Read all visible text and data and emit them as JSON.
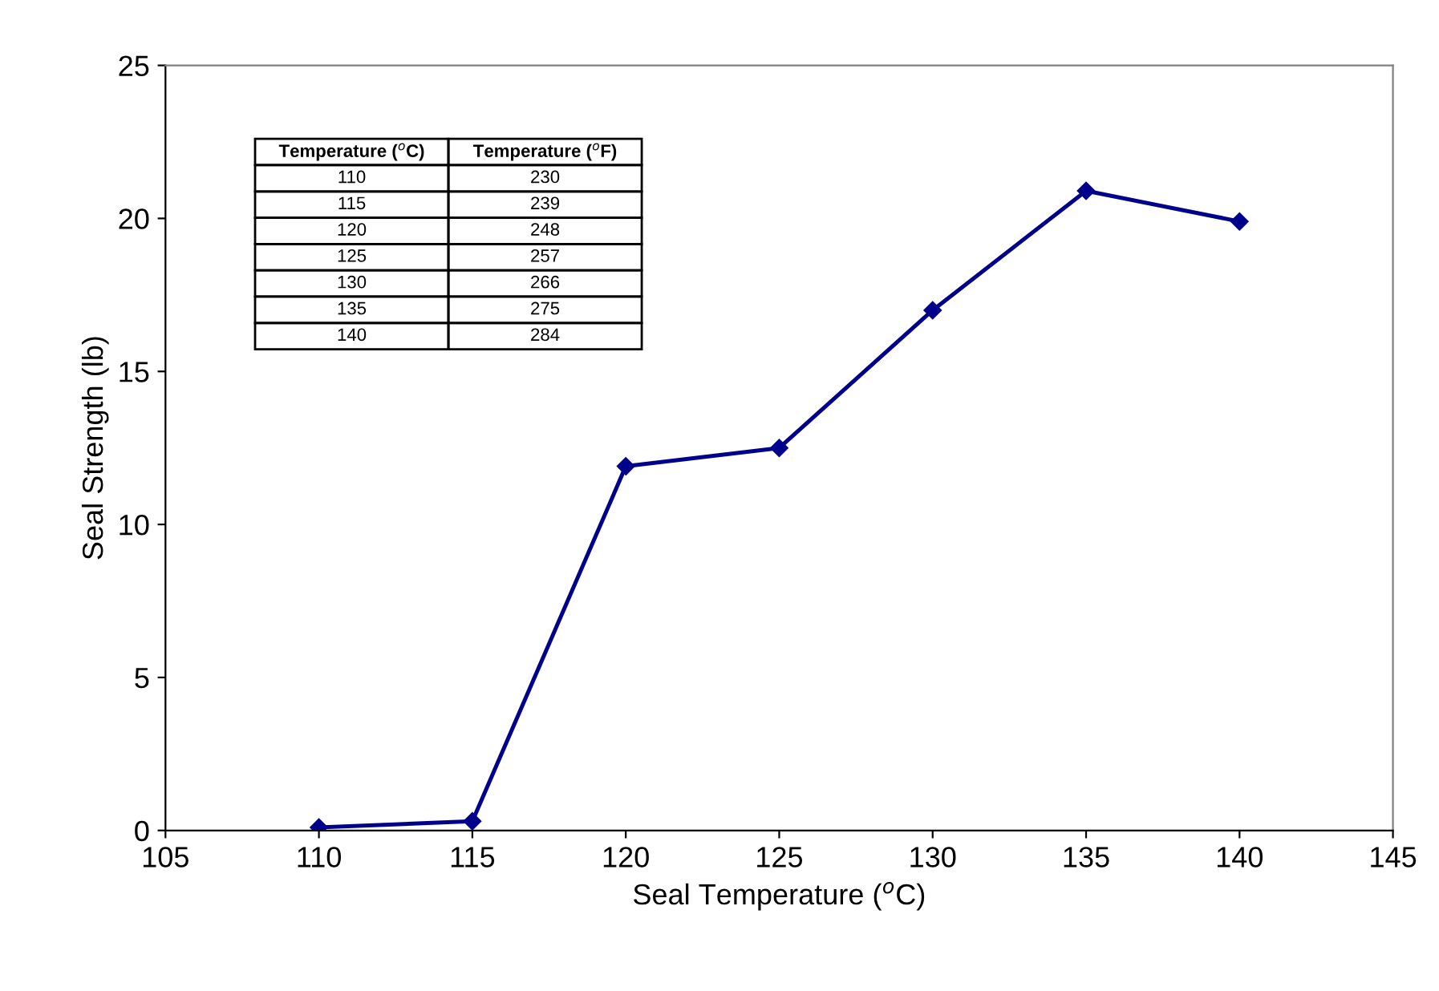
{
  "chart_data": {
    "type": "line",
    "xlabel": "Seal Temperature ($^{o}$C)",
    "ylabel": "Seal Strength (lb)",
    "x": [
      110,
      115,
      120,
      125,
      130,
      135,
      140
    ],
    "series": [
      {
        "color": "#00008b",
        "values": [
          0.1,
          0.3,
          11.9,
          12.5,
          17.0,
          20.9,
          19.9
        ]
      }
    ],
    "xlim": [
      105,
      145
    ],
    "xticks": [
      105,
      110,
      115,
      120,
      125,
      130,
      135,
      140,
      145
    ],
    "ylim": [
      0,
      25
    ],
    "yticks": [
      0,
      5,
      10,
      15,
      20,
      25
    ],
    "marker": "diamond",
    "line_style": "solid",
    "grid": false,
    "annotations": [
      "Temperature ($^{o}$C)",
      "Temperature ($^{o}$F)",
      "110",
      "230",
      "115",
      "239",
      "120",
      "248",
      "125",
      "257",
      "130",
      "266",
      "135",
      "275",
      "140",
      "284"
    ]
  }
}
